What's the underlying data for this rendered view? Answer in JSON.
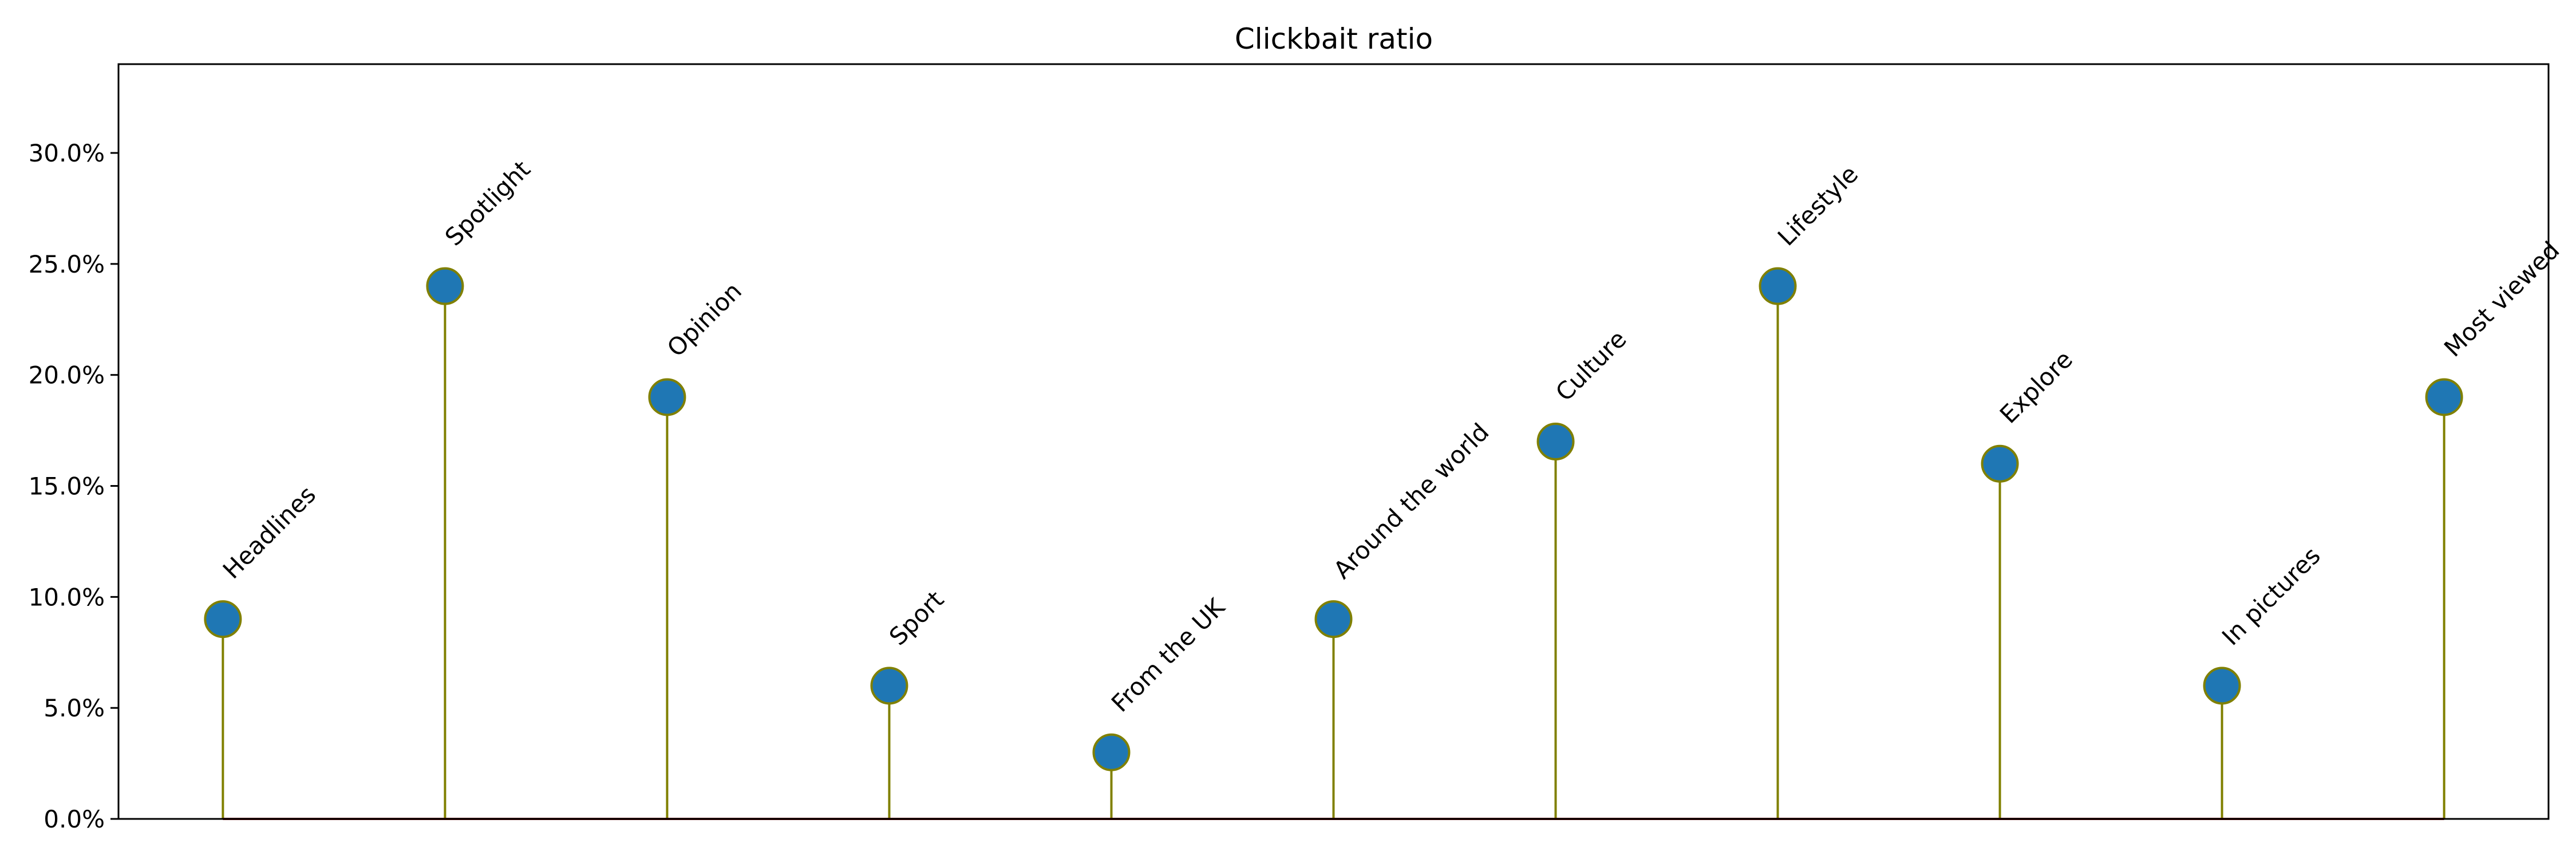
{
  "chart_data": {
    "type": "lollipop",
    "title": "Clickbait ratio",
    "xlabel": "",
    "ylabel": "",
    "ylim": [
      0,
      34
    ],
    "yticks": [
      0,
      5,
      10,
      15,
      20,
      25,
      30
    ],
    "ytick_labels": [
      "0.0%",
      "5.0%",
      "10.0%",
      "15.0%",
      "20.0%",
      "25.0%",
      "30.0%"
    ],
    "grid": false,
    "categories": [
      "Headlines",
      "Spotlight",
      "Opinion",
      "Sport",
      "From the UK",
      "Around the world",
      "Culture",
      "Lifestyle",
      "Explore",
      "In pictures",
      "Most viewed"
    ],
    "values": [
      9,
      24,
      19,
      6,
      3,
      9,
      17,
      24,
      16,
      6,
      19
    ],
    "colors": {
      "marker_fill": "#1f77b4",
      "marker_edge": "#808000",
      "stem": "#808000",
      "baseline": "#8b0000",
      "axes": "#000000"
    }
  }
}
